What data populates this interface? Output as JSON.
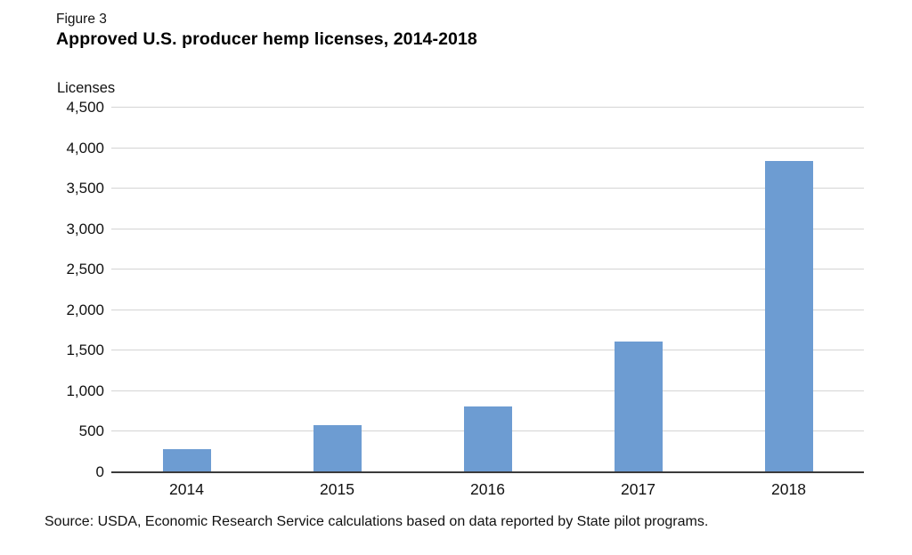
{
  "figure_label": "Figure 3",
  "title": "Approved U.S. producer hemp licenses, 2014-2018",
  "source": "Source: USDA, Economic Research Service calculations based on data reported by State pilot programs.",
  "colors": {
    "bar": "#6d9cd2",
    "gridline": "#d4d4d4",
    "axis": "#3b3b3b",
    "text": "#111111"
  },
  "chart_data": {
    "type": "bar",
    "title": "Approved U.S. producer hemp licenses, 2014-2018",
    "categories": [
      "2014",
      "2015",
      "2016",
      "2017",
      "2018"
    ],
    "values": [
      290,
      580,
      815,
      1610,
      3840
    ],
    "xlabel": "",
    "ylabel": "Licenses",
    "ylim": [
      0,
      4500
    ],
    "ytick_interval": 500,
    "ytick_labels": [
      "0",
      "500",
      "1,000",
      "1,500",
      "2,000",
      "2,500",
      "3,000",
      "3,500",
      "4,000",
      "4,500"
    ],
    "grid": true,
    "legend": false
  }
}
